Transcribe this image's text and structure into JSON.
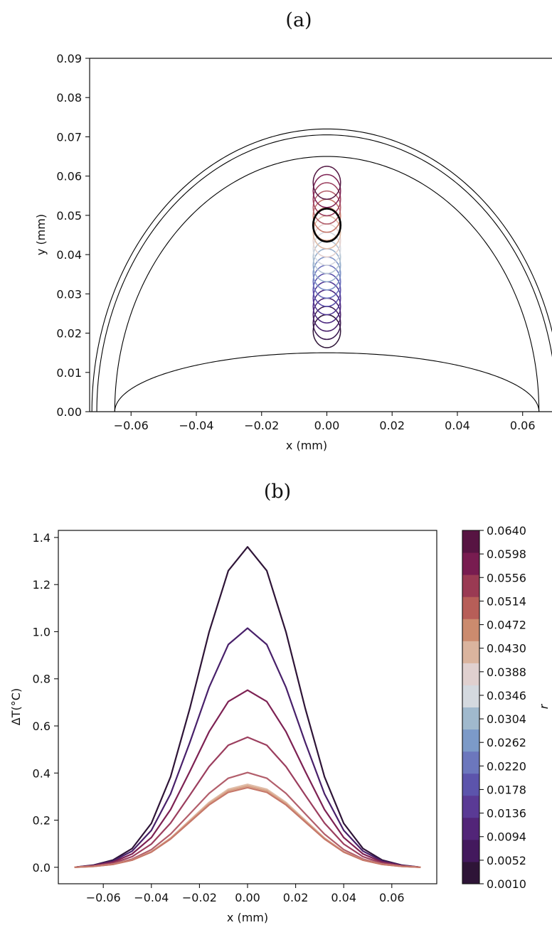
{
  "chart_data": [
    {
      "type": "line",
      "panel": "(a)",
      "title": "(a)",
      "xlabel": "x (mm)",
      "ylabel": "y (mm)",
      "xlim": [
        -0.0727,
        0.069
      ],
      "ylim": [
        0,
        0.09
      ],
      "xticks": [
        "−0.06",
        "−0.04",
        "−0.02",
        "0.00",
        "0.02",
        "0.04",
        "0.06"
      ],
      "yticks": [
        "0.00",
        "0.01",
        "0.02",
        "0.03",
        "0.04",
        "0.05",
        "0.06",
        "0.07",
        "0.08",
        "0.09"
      ],
      "grid": false,
      "boundaries": [
        {
          "name": "outer ellipse",
          "x_semi_axis": 0.072,
          "y_peak": 0.072,
          "y_base": 0.0
        },
        {
          "name": "middle ellipse",
          "x_semi_axis": 0.0705,
          "y_peak": 0.0705,
          "y_base": 0.0
        },
        {
          "name": "inner ellipse",
          "x_semi_axis": 0.065,
          "y_peak": 0.065,
          "y_base": 0.0
        },
        {
          "name": "lower arc",
          "x_semi_axis": 0.065,
          "y_peak": 0.015,
          "y_base": 0.0
        }
      ],
      "circles": {
        "x_center": 0.0,
        "radius": 0.0042,
        "y_centers": [
          0.0205,
          0.0226,
          0.0247,
          0.0268,
          0.0289,
          0.031,
          0.0331,
          0.0352,
          0.0373,
          0.0394,
          0.0415,
          0.0436,
          0.0457,
          0.0478,
          0.0499,
          0.052,
          0.0541,
          0.0562,
          0.0583
        ],
        "colors": [
          "#2e1437",
          "#3b1a4f",
          "#48206a",
          "#4c2880",
          "#503795",
          "#5a4fab",
          "#6a6fbc",
          "#7b90c6",
          "#94adcc",
          "#b4c5d4",
          "#d8dbe2",
          "#e5d2cf",
          "#dfbca7",
          "#d8a286",
          "#c6786a",
          "#b25e6b",
          "#9b3e5e",
          "#7d2153",
          "#541944"
        ],
        "highlight": {
          "y_center": 0.0475,
          "color": "#000000"
        }
      }
    },
    {
      "type": "line",
      "panel": "(b)",
      "title": "(b)",
      "xlabel": "x (mm)",
      "ylabel": "ΔT(°C)",
      "xlim": [
        -0.0787,
        0.0787
      ],
      "ylim": [
        -0.07,
        1.43
      ],
      "xticks": [
        "−0.06",
        "−0.04",
        "−0.02",
        "0.00",
        "0.02",
        "0.04",
        "0.06"
      ],
      "yticks": [
        "0.0",
        "0.2",
        "0.4",
        "0.6",
        "0.8",
        "1.0",
        "1.2",
        "1.4"
      ],
      "grid": false,
      "x": [
        -0.072,
        -0.064,
        -0.056,
        -0.048,
        -0.04,
        -0.032,
        -0.024,
        -0.016,
        -0.008,
        0.0,
        0.008,
        0.016,
        0.024,
        0.032,
        0.04,
        0.048,
        0.056,
        0.064,
        0.072
      ],
      "series": [
        {
          "color": "#2e1437",
          "peak": 1.36
        },
        {
          "color": "#48206a",
          "peak": 1.015
        },
        {
          "color": "#7d2153",
          "peak": 0.752
        },
        {
          "color": "#9b3e5e",
          "peak": 0.552
        },
        {
          "color": "#b25e6b",
          "peak": 0.402
        },
        {
          "color": "#dfbca7",
          "peak": 0.352
        },
        {
          "color": "#d8a286",
          "peak": 0.345
        },
        {
          "color": "#c6786a",
          "peak": 0.338
        }
      ],
      "colorbar": {
        "label": "r",
        "ticks": [
          "0.0010",
          "0.0052",
          "0.0094",
          "0.0136",
          "0.0178",
          "0.0220",
          "0.0262",
          "0.0304",
          "0.0346",
          "0.0388",
          "0.0430",
          "0.0472",
          "0.0514",
          "0.0556",
          "0.0598",
          "0.0640"
        ],
        "colors": [
          "#2e1437",
          "#43195d",
          "#522578",
          "#5a3a95",
          "#5c54ac",
          "#6c77bd",
          "#7c9ac8",
          "#a0b9cd",
          "#d4d9df",
          "#e0d0cf",
          "#dab49e",
          "#cb8b6e",
          "#b75e58",
          "#9a3a53",
          "#781c50",
          "#571442"
        ]
      }
    }
  ]
}
